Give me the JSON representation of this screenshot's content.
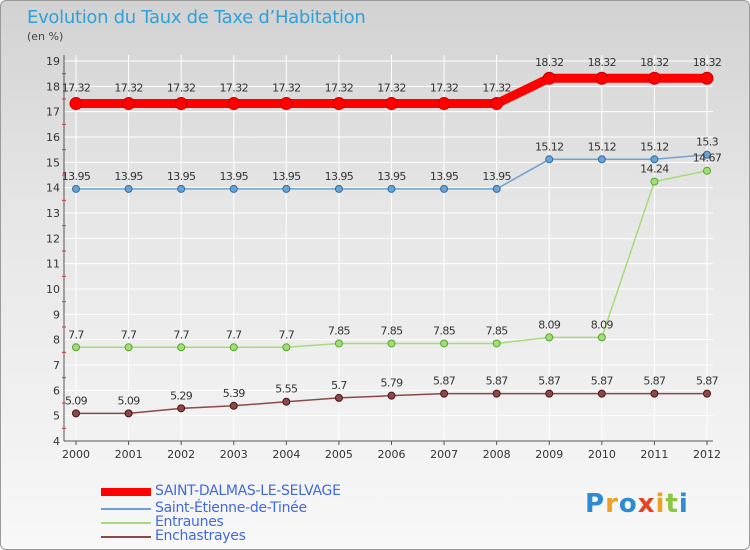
{
  "header": {
    "title": "Evolution du Taux de Taxe d’Habitation",
    "unit": "(en %)"
  },
  "brand": {
    "text": "Proxiti",
    "letters": [
      {
        "ch": "P",
        "color": "#2e8bd2"
      },
      {
        "ch": "r",
        "color": "#f0a020"
      },
      {
        "ch": "o",
        "color": "#2e8bd2"
      },
      {
        "ch": "x",
        "color": "#e8431f"
      },
      {
        "ch": "i",
        "color": "#f0a020"
      },
      {
        "ch": "t",
        "color": "#8cc63f"
      },
      {
        "ch": "i",
        "color": "#2e8bd2"
      }
    ]
  },
  "chart_data": {
    "type": "line",
    "categories": [
      "2000",
      "2001",
      "2002",
      "2003",
      "2004",
      "2005",
      "2006",
      "2007",
      "2008",
      "2009",
      "2010",
      "2011",
      "2012"
    ],
    "ylim": [
      4,
      19
    ],
    "yticks": [
      4,
      5,
      6,
      7,
      8,
      9,
      10,
      11,
      12,
      13,
      14,
      15,
      16,
      17,
      18,
      19
    ],
    "grid": true,
    "series": [
      {
        "name": "SAINT-DALMAS-LE-SELVAGE",
        "color": "#ff0000",
        "width": 9,
        "values": [
          17.32,
          17.32,
          17.32,
          17.32,
          17.32,
          17.32,
          17.32,
          17.32,
          17.32,
          18.32,
          18.32,
          18.32,
          18.32
        ],
        "labels": [
          "17.32",
          "17.32",
          "17.32",
          "17.32",
          "17.32",
          "17.32",
          "17.32",
          "17.32",
          "17.32",
          "18.32",
          "18.32",
          "18.32",
          "18.32"
        ]
      },
      {
        "name": "Saint-Étienne-de-Tinée",
        "color": "#6ea3cf",
        "width": 1.5,
        "values": [
          13.95,
          13.95,
          13.95,
          13.95,
          13.95,
          13.95,
          13.95,
          13.95,
          13.95,
          15.12,
          15.12,
          15.12,
          15.3
        ],
        "labels": [
          "13.95",
          "13.95",
          "13.95",
          "13.95",
          "13.95",
          "13.95",
          "13.95",
          "13.95",
          "13.95",
          "15.12",
          "15.12",
          "15.12",
          "15.3"
        ]
      },
      {
        "name": "Entraunes",
        "color": "#a3dc7a",
        "width": 1.5,
        "values": [
          7.7,
          7.7,
          7.7,
          7.7,
          7.7,
          7.85,
          7.85,
          7.85,
          7.85,
          8.09,
          8.09,
          14.24,
          14.67
        ],
        "labels": [
          "7.7",
          "7.7",
          "7.7",
          "7.7",
          "7.7",
          "7.85",
          "7.85",
          "7.85",
          "7.85",
          "8.09",
          "8.09",
          "14.24",
          "14.67"
        ]
      },
      {
        "name": "Enchastrayes",
        "color": "#8b4a4a",
        "width": 1.5,
        "values": [
          5.09,
          5.09,
          5.29,
          5.39,
          5.55,
          5.7,
          5.79,
          5.87,
          5.87,
          5.87,
          5.87,
          5.87,
          5.87
        ],
        "labels": [
          "5.09",
          "5.09",
          "5.29",
          "5.39",
          "5.55",
          "5.7",
          "5.79",
          "5.87",
          "5.87",
          "5.87",
          "5.87",
          "5.87",
          "5.87"
        ]
      }
    ]
  }
}
